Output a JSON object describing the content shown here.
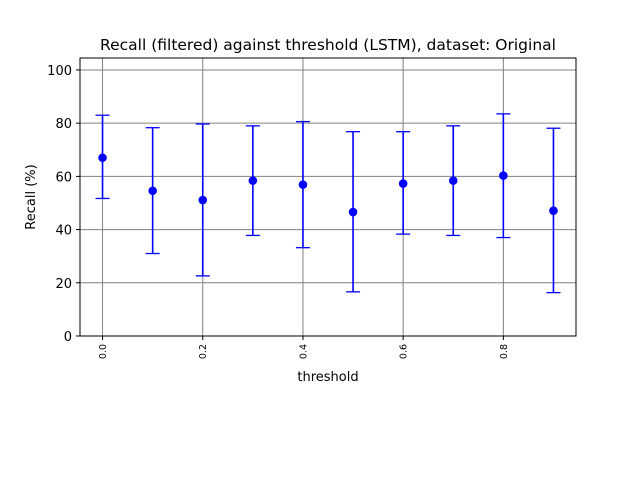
{
  "chart_data": {
    "type": "scatter",
    "subtype": "errorbar",
    "title": "Recall (filtered) against threshold (LSTM), dataset: Original",
    "xlabel": "threshold",
    "ylabel": "Recall (%)",
    "xlim": [
      -0.045,
      0.945
    ],
    "ylim": [
      0,
      104.5
    ],
    "x_ticks": [
      0.0,
      0.2,
      0.4,
      0.6,
      0.8
    ],
    "x_tick_labels": [
      "0.0",
      "0.2",
      "0.4",
      "0.6",
      "0.8"
    ],
    "y_ticks": [
      0,
      20,
      40,
      60,
      80,
      100
    ],
    "y_tick_labels": [
      "0",
      "20",
      "40",
      "60",
      "80",
      "100"
    ],
    "grid": true,
    "color": "#0000ff",
    "series": [
      {
        "x": [
          0.0,
          0.1,
          0.2,
          0.3,
          0.4,
          0.5,
          0.6,
          0.7,
          0.8,
          0.9
        ],
        "y": [
          67.0,
          54.6,
          51.1,
          58.4,
          56.9,
          46.6,
          57.3,
          58.4,
          60.3,
          47.1
        ],
        "y_low": [
          51.7,
          31.0,
          22.6,
          37.8,
          33.2,
          16.6,
          38.3,
          37.8,
          37.0,
          16.3
        ],
        "y_high": [
          83.0,
          78.3,
          79.7,
          79.0,
          80.6,
          76.8,
          76.8,
          79.0,
          83.5,
          78.1
        ]
      }
    ]
  }
}
